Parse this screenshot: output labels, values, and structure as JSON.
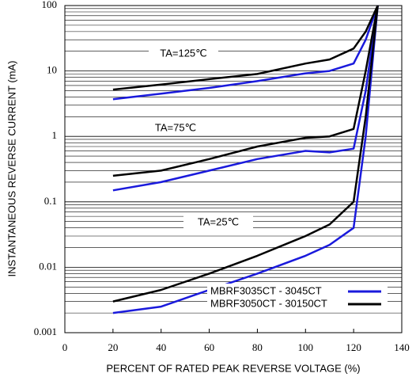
{
  "chart_data": {
    "type": "line",
    "xlabel": "PERCENT OF RATED PEAK REVERSE VOLTAGE (%)",
    "ylabel": "INSTANTANEOUS REVERSE CURRENT (mA)",
    "annotations": [
      "TA=125℃",
      "TA=75℃",
      "TA=25℃"
    ],
    "x": [
      20,
      40,
      60,
      80,
      100,
      110,
      120,
      125,
      130
    ],
    "series": [
      {
        "name": "MBRF3035CT - 3045CT",
        "color": "#1a1adc",
        "curves": [
          [
            3.7,
            4.5,
            5.5,
            7,
            9.2,
            10,
            13,
            30,
            100
          ],
          [
            0.15,
            0.2,
            0.3,
            0.45,
            0.6,
            0.57,
            0.65,
            5,
            100
          ],
          [
            0.002,
            0.0025,
            0.0045,
            0.008,
            0.015,
            0.022,
            0.04,
            1,
            100
          ]
        ]
      },
      {
        "name": "MBRF3050CT - 30150CT",
        "color": "#000000",
        "curves": [
          [
            5.2,
            6.2,
            7.5,
            9,
            13,
            15,
            22,
            40,
            100
          ],
          [
            0.25,
            0.3,
            0.45,
            0.7,
            0.95,
            1.0,
            1.3,
            10,
            100
          ],
          [
            0.003,
            0.0045,
            0.008,
            0.015,
            0.03,
            0.045,
            0.1,
            2,
            100
          ]
        ]
      }
    ],
    "xlim": [
      0,
      140
    ],
    "xticks": [
      0,
      20,
      40,
      60,
      80,
      100,
      120,
      140
    ],
    "ylim": [
      0.001,
      100
    ],
    "yticks": [
      0.001,
      0.01,
      0.1,
      1,
      10,
      100
    ],
    "log_y": true,
    "grid": true,
    "legend": "lower right"
  }
}
